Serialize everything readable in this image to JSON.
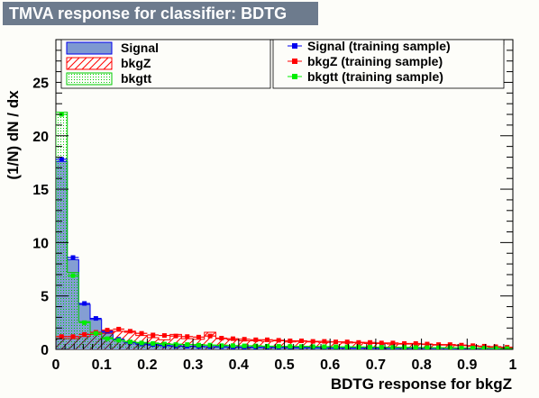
{
  "chart_data": {
    "type": "bar",
    "title": "TMVA response for classifier: BDTG",
    "xlabel": "BDTG response for bkgZ",
    "ylabel": "(1/N) dN / dx",
    "xlim": [
      0,
      1
    ],
    "ylim": [
      0,
      29
    ],
    "bin_width": 0.025,
    "x_ticks": [
      "0",
      "0.1",
      "0.2",
      "0.3",
      "0.4",
      "0.5",
      "0.6",
      "0.7",
      "0.8",
      "0.9",
      "1"
    ],
    "y_ticks": [
      "0",
      "5",
      "10",
      "15",
      "20",
      "25"
    ],
    "legend_position": "top",
    "series": [
      {
        "name": "Signal",
        "kind": "hist",
        "fill": "#7d99d1",
        "line": "#0000ee",
        "pattern": "solid",
        "values": [
          17.6,
          8.4,
          4.2,
          2.8,
          1.6,
          0.9,
          0.6,
          0.45,
          0.4,
          0.35,
          0.3,
          0.28,
          0.26,
          0.24,
          0.22,
          0.2,
          0.19,
          0.18,
          0.17,
          0.16,
          0.15,
          0.14,
          0.14,
          0.13,
          0.12,
          0.12,
          0.11,
          0.11,
          0.1,
          0.1,
          0.1,
          0.09,
          0.09,
          0.09,
          0.08,
          0.08,
          0.08,
          0.07,
          0.06,
          0.05
        ]
      },
      {
        "name": "bkgZ",
        "kind": "hist",
        "fill": "none",
        "line": "#ff0000",
        "pattern": "hatch",
        "values": [
          1.0,
          1.0,
          1.2,
          1.4,
          1.5,
          1.7,
          1.6,
          1.3,
          1.1,
          0.9,
          1.4,
          1.0,
          0.95,
          1.6,
          1.0,
          0.9,
          0.8,
          0.8,
          0.75,
          0.8,
          0.7,
          0.75,
          0.7,
          0.65,
          0.7,
          0.6,
          0.65,
          0.55,
          0.55,
          0.5,
          0.5,
          0.5,
          0.45,
          0.4,
          0.4,
          0.35,
          0.3,
          0.25,
          0.2,
          0.15
        ]
      },
      {
        "name": "bkgtt",
        "kind": "hist",
        "fill": "none",
        "line": "#00cc00",
        "pattern": "dots",
        "values": [
          22.2,
          7.2,
          2.6,
          1.6,
          1.1,
          0.9,
          0.75,
          0.65,
          0.6,
          0.55,
          0.5,
          0.45,
          0.45,
          0.4,
          0.4,
          0.35,
          0.35,
          0.35,
          0.3,
          0.3,
          0.3,
          0.28,
          0.27,
          0.26,
          0.25,
          0.24,
          0.23,
          0.22,
          0.21,
          0.2,
          0.19,
          0.18,
          0.17,
          0.16,
          0.15,
          0.14,
          0.13,
          0.12,
          0.1,
          0.08
        ]
      },
      {
        "name": "Signal (training sample)",
        "kind": "points",
        "color": "#0000ee",
        "values": [
          17.8,
          8.6,
          4.3,
          2.9,
          1.7,
          0.95,
          0.65,
          0.5,
          0.45,
          0.38,
          0.33,
          0.3,
          0.28,
          0.26,
          0.24,
          0.22,
          0.21,
          0.2,
          0.19,
          0.18,
          0.17,
          0.16,
          0.15,
          0.14,
          0.13,
          0.12,
          0.12,
          0.11,
          0.11,
          0.1,
          0.1,
          0.1,
          0.09,
          0.09,
          0.09,
          0.08,
          0.08,
          0.07,
          0.06,
          0.05
        ]
      },
      {
        "name": "bkgZ (training sample)",
        "kind": "points",
        "color": "#ff0000",
        "values": [
          1.2,
          1.2,
          1.4,
          1.6,
          1.8,
          1.9,
          1.7,
          1.5,
          1.35,
          1.3,
          1.25,
          1.2,
          1.15,
          1.25,
          1.05,
          1.0,
          0.95,
          0.9,
          0.9,
          0.85,
          0.8,
          0.8,
          0.75,
          0.75,
          0.7,
          0.7,
          0.65,
          0.65,
          0.6,
          0.6,
          0.55,
          0.55,
          0.5,
          0.45,
          0.45,
          0.4,
          0.35,
          0.3,
          0.25,
          0.2
        ]
      },
      {
        "name": "bkgtt (training sample)",
        "kind": "points",
        "color": "#00ee00",
        "values": [
          22.0,
          6.9,
          2.5,
          1.5,
          1.0,
          0.85,
          0.7,
          0.6,
          0.55,
          0.5,
          0.45,
          0.45,
          0.4,
          0.4,
          0.35,
          0.35,
          0.33,
          0.32,
          0.3,
          0.29,
          0.28,
          0.27,
          0.26,
          0.25,
          0.24,
          0.23,
          0.22,
          0.21,
          0.2,
          0.19,
          0.18,
          0.17,
          0.16,
          0.15,
          0.14,
          0.13,
          0.12,
          0.11,
          0.09,
          0.07
        ]
      }
    ]
  }
}
